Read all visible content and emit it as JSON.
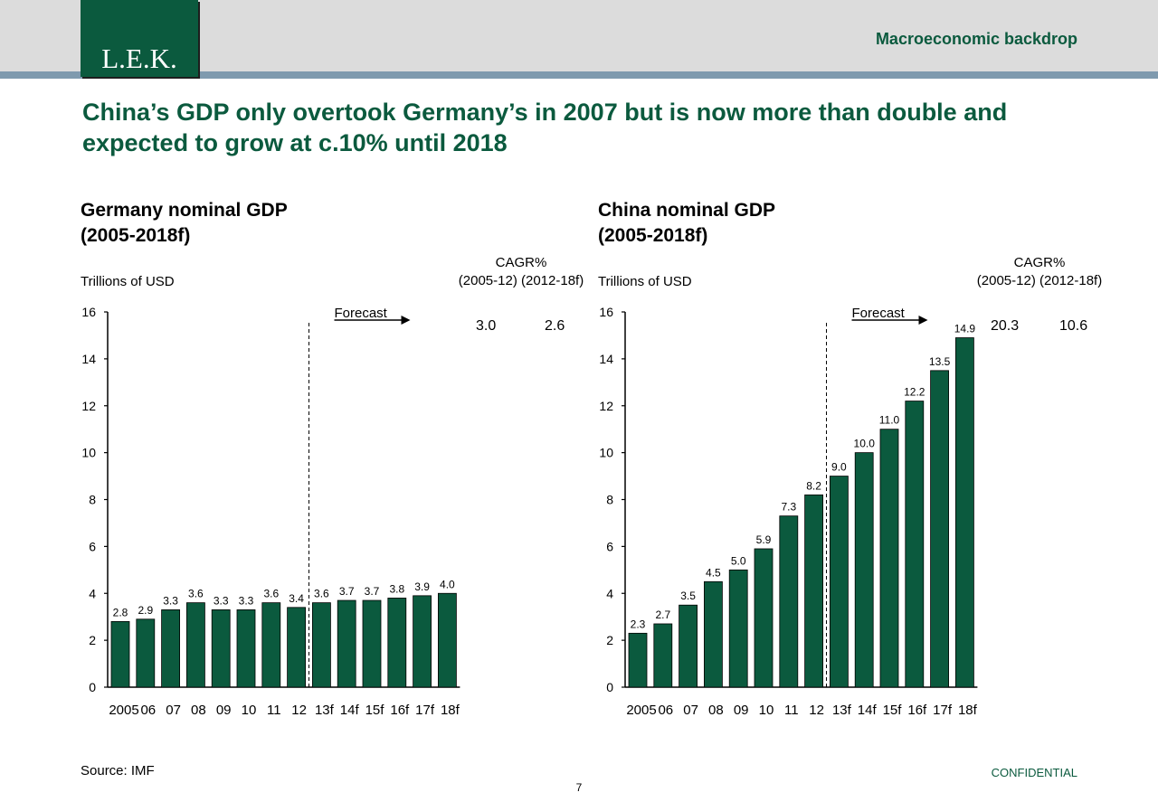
{
  "header": {
    "logo_text": "L.E.K.",
    "section_label": "Macroeconomic backdrop"
  },
  "headline": {
    "line1": "China’s GDP only overtook Germany’s in 2007 but is now more than double and",
    "line2": "expected to grow at c.10% until 2018"
  },
  "colors": {
    "brand": "#0b5a3e",
    "bar": "#0b5a3e",
    "band": "#dcdcdc",
    "rule": "#7f9aae"
  },
  "chart_data": [
    {
      "type": "bar",
      "title_line1": "Germany nominal GDP",
      "title_line2": "(2005-2018f)",
      "ylabel": "Trillions of USD",
      "ylim": [
        0,
        16
      ],
      "yticks": [
        "0",
        "2",
        "4",
        "6",
        "8",
        "10",
        "12",
        "14",
        "16"
      ],
      "categories": [
        "2005",
        "06",
        "07",
        "08",
        "09",
        "10",
        "11",
        "12",
        "13f",
        "14f",
        "15f",
        "16f",
        "17f",
        "18f"
      ],
      "values": [
        2.8,
        2.9,
        3.3,
        3.6,
        3.3,
        3.3,
        3.6,
        3.4,
        3.6,
        3.7,
        3.7,
        3.8,
        3.9,
        4.0
      ],
      "value_labels": [
        "2.8",
        "2.9",
        "3.3",
        "3.6",
        "3.3",
        "3.3",
        "3.6",
        "3.4",
        "3.6",
        "3.7",
        "3.7",
        "3.8",
        "3.9",
        "4.0"
      ],
      "forecast_label": "Forecast",
      "forecast_start_index": 8,
      "cagr_title": "CAGR%",
      "cagr_periods": "(2005-12) (2012-18f)",
      "cagr_2005_12": "3.0",
      "cagr_2012_18f": "2.6",
      "grid": false
    },
    {
      "type": "bar",
      "title_line1": "China nominal GDP",
      "title_line2": "(2005-2018f)",
      "ylabel": "Trillions of USD",
      "ylim": [
        0,
        16
      ],
      "yticks": [
        "0",
        "2",
        "4",
        "6",
        "8",
        "10",
        "12",
        "14",
        "16"
      ],
      "categories": [
        "2005",
        "06",
        "07",
        "08",
        "09",
        "10",
        "11",
        "12",
        "13f",
        "14f",
        "15f",
        "16f",
        "17f",
        "18f"
      ],
      "values": [
        2.3,
        2.7,
        3.5,
        4.5,
        5.0,
        5.9,
        7.3,
        8.2,
        9.0,
        10.0,
        11.0,
        12.2,
        13.5,
        14.9
      ],
      "value_labels": [
        "2.3",
        "2.7",
        "3.5",
        "4.5",
        "5.0",
        "5.9",
        "7.3",
        "8.2",
        "9.0",
        "10.0",
        "11.0",
        "12.2",
        "13.5",
        "14.9"
      ],
      "forecast_label": "Forecast",
      "forecast_start_index": 8,
      "cagr_title": "CAGR%",
      "cagr_periods": "(2005-12) (2012-18f)",
      "cagr_2005_12": "20.3",
      "cagr_2012_18f": "10.6",
      "grid": false
    }
  ],
  "footer": {
    "source": "Source: IMF",
    "page_number": "7",
    "confidential": "CONFIDENTIAL"
  }
}
